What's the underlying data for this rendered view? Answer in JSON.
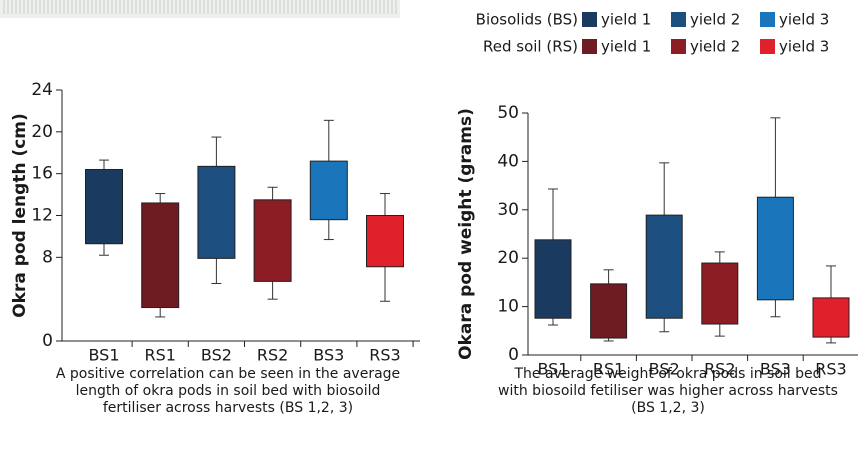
{
  "legend": {
    "groups": [
      {
        "name": "Biosolids (BS)",
        "items": [
          {
            "name": "yield 1",
            "color": "#1b3a5f"
          },
          {
            "name": "yield 2",
            "color": "#1d4e80"
          },
          {
            "name": "yield 3",
            "color": "#1b75bb"
          }
        ]
      },
      {
        "name": "Red soil (RS)",
        "items": [
          {
            "name": "yield 1",
            "color": "#6e1b22"
          },
          {
            "name": "yield 2",
            "color": "#8c1d24"
          },
          {
            "name": "yield 3",
            "color": "#e0202a"
          }
        ]
      }
    ]
  },
  "chart_data": [
    {
      "type": "floating-bar",
      "ylabel": "Okra pod length (cm)",
      "caption": [
        "A positive correlation can be seen in the average",
        "length of okra pods in soil bed with biosoild",
        "fertiliser across harvests (BS 1,2, 3)"
      ],
      "categories": [
        "BS1",
        "RS1",
        "BS2",
        "RS2",
        "BS3",
        "RS3"
      ],
      "colors": [
        "#1b3a5f",
        "#6e1b22",
        "#1d4e80",
        "#8c1d24",
        "#1b75bb",
        "#e0202a"
      ],
      "box_low": [
        9.3,
        3.2,
        7.9,
        5.7,
        11.6,
        7.1
      ],
      "box_high": [
        16.4,
        13.2,
        16.7,
        13.5,
        17.2,
        12.0
      ],
      "whisker_low": [
        8.2,
        2.3,
        5.5,
        4.0,
        9.7,
        3.8
      ],
      "whisker_high": [
        17.3,
        14.1,
        19.5,
        14.7,
        21.1,
        14.1
      ],
      "ylim": [
        0,
        24
      ],
      "yticks": [
        0,
        8,
        12,
        16,
        20,
        24
      ]
    },
    {
      "type": "floating-bar",
      "ylabel": "Okara pod weight (grams)",
      "caption": [
        "The average weight of okra pods in soil bed",
        "with biosoild fetiliser was higher across harvests",
        "(BS 1,2, 3)"
      ],
      "categories": [
        "BS1",
        "RS1",
        "BS2",
        "RS2",
        "BS3",
        "RS3"
      ],
      "colors": [
        "#1b3a5f",
        "#6e1b22",
        "#1d4e80",
        "#8c1d24",
        "#1b75bb",
        "#e0202a"
      ],
      "box_low": [
        7.6,
        3.5,
        7.6,
        6.4,
        11.4,
        3.7
      ],
      "box_high": [
        23.8,
        14.7,
        28.9,
        19.0,
        32.6,
        11.8
      ],
      "whisker_low": [
        6.2,
        2.9,
        4.8,
        3.9,
        7.9,
        2.5
      ],
      "whisker_high": [
        34.3,
        17.6,
        39.7,
        21.3,
        49.0,
        18.4
      ],
      "ylim": [
        0,
        50
      ],
      "yticks": [
        0,
        10,
        20,
        30,
        40,
        50
      ]
    }
  ]
}
